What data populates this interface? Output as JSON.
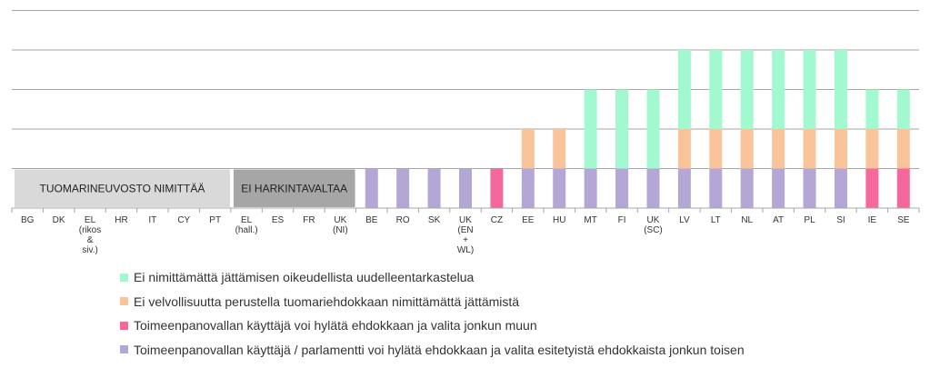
{
  "chart_data": {
    "type": "bar",
    "stacked": true,
    "categories": [
      [
        "BG"
      ],
      [
        "DK"
      ],
      [
        "EL",
        "(rikos",
        "&",
        "siv.)"
      ],
      [
        "HR"
      ],
      [
        "IT"
      ],
      [
        "CY"
      ],
      [
        "PT"
      ],
      [
        "EL",
        "(hall.)"
      ],
      [
        "ES"
      ],
      [
        "FR"
      ],
      [
        "UK",
        "(NI)"
      ],
      [
        "BE"
      ],
      [
        "RO"
      ],
      [
        "SK"
      ],
      [
        "UK",
        "(EN",
        "+",
        "WL)"
      ],
      [
        "CZ"
      ],
      [
        "EE"
      ],
      [
        "HU"
      ],
      [
        "MT"
      ],
      [
        "FI"
      ],
      [
        "UK",
        "(SC)"
      ],
      [
        "LV"
      ],
      [
        "LT"
      ],
      [
        "NL"
      ],
      [
        "AT"
      ],
      [
        "PL"
      ],
      [
        "SI"
      ],
      [
        "IE"
      ],
      [
        "SE"
      ]
    ],
    "series": [
      {
        "name": "Toimeenpanovallan käyttäjä / parlamentti voi hylätä ehdokkaan ja valita esitetyistä ehdokkaista jonkun toisen",
        "color": "#b4a7d6",
        "values": [
          0,
          0,
          0,
          0,
          0,
          0,
          0,
          0,
          0,
          0,
          0,
          1,
          1,
          1,
          1,
          0,
          1,
          1,
          1,
          1,
          1,
          1,
          1,
          1,
          1,
          1,
          1,
          0,
          0
        ]
      },
      {
        "name": "Toimeenpanovallan käyttäjä voi hylätä ehdokkaan ja valita jonkun muun",
        "color": "#f4689d",
        "values": [
          0,
          0,
          0,
          0,
          0,
          0,
          0,
          0,
          0,
          0,
          0,
          0,
          0,
          0,
          0,
          1,
          0,
          0,
          0,
          0,
          0,
          0,
          0,
          0,
          0,
          0,
          0,
          1,
          1
        ]
      },
      {
        "name": "Ei velvollisuutta perustella tuomariehdokkaan nimittämättä jättämistä",
        "color": "#f9c49a",
        "values": [
          0,
          0,
          0,
          0,
          0,
          0,
          0,
          0,
          0,
          0,
          0,
          0,
          0,
          0,
          0,
          0,
          1,
          1,
          0,
          0,
          0,
          1,
          1,
          1,
          1,
          1,
          1,
          1,
          1
        ]
      },
      {
        "name": "Ei nimittämättä jättämisen oikeudellista uudelleentarkastelua",
        "color": "#a2f9d0",
        "values": [
          0,
          0,
          0,
          0,
          0,
          0,
          0,
          0,
          0,
          0,
          0,
          0,
          0,
          0,
          0,
          0,
          0,
          0,
          2,
          2,
          2,
          2,
          2,
          2,
          2,
          2,
          2,
          1,
          1
        ]
      }
    ],
    "legend_order": [
      3,
      2,
      1,
      0
    ],
    "ylim": [
      0,
      4
    ],
    "grid": true,
    "legend_position": "bottom",
    "bands": [
      {
        "label": "TUOMARINEUVOSTO NIMITTÄÄ",
        "start": 0,
        "end": 6,
        "color": "#d9d9d9"
      },
      {
        "label": "EI HARKINTAVALTAA",
        "start": 7,
        "end": 10,
        "color": "#a6a6a6"
      }
    ]
  }
}
